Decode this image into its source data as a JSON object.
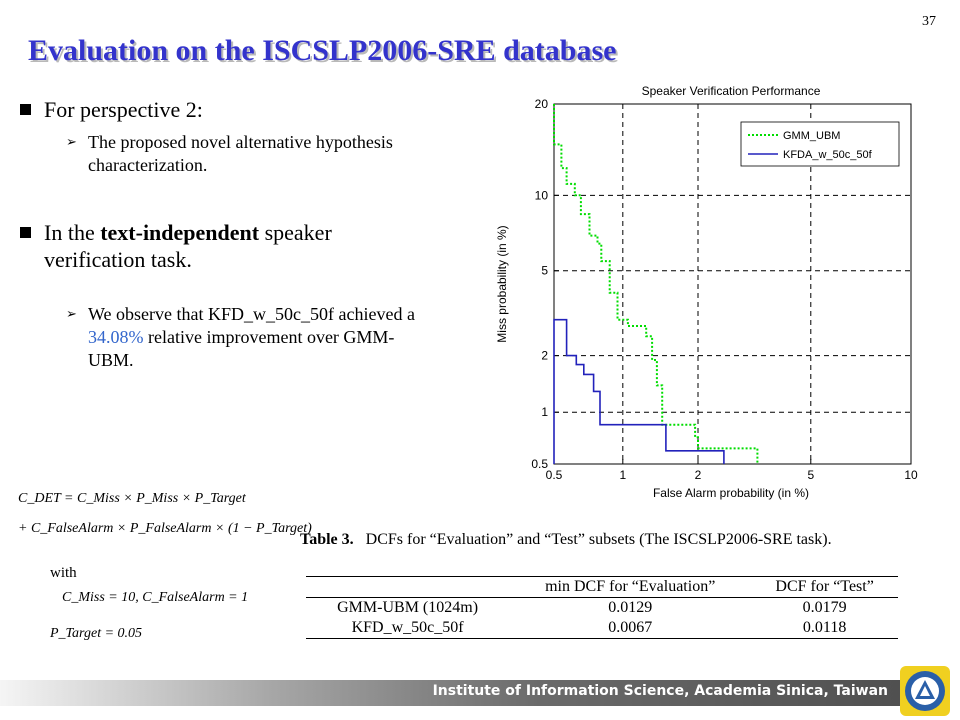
{
  "page_number": "37",
  "title": "Evaluation on the ISCSLP2006-SRE database",
  "bullets": [
    {
      "text": "For perspective 2:",
      "sub": [
        {
          "text": "The proposed novel alternative hypothesis characterization."
        }
      ]
    },
    {
      "text_pre": "In the ",
      "text_bold": "text-independent",
      "text_post": " speaker verification task.",
      "sub": [
        {
          "text_pre": "We observe that KFD_w_50c_50f achieved a ",
          "highlight": "34.08%",
          "text_post": " relative improvement over GMM-UBM."
        }
      ]
    }
  ],
  "formula": {
    "line1": "C_DET = C_Miss × P_Miss × P_Target",
    "line2": "+ C_FalseAlarm × P_FalseAlarm × (1 − P_Target)",
    "with": "with",
    "line3": "C_Miss = 10,   C_FalseAlarm = 1",
    "line4": "P_Target = 0.05"
  },
  "table": {
    "caption_bold": "Table 3.",
    "caption": "DCFs for “Evaluation” and “Test” subsets (The ISCSLP2006-SRE task).",
    "headers": [
      "",
      "min DCF for “Evaluation”",
      "DCF for “Test”"
    ],
    "rows": [
      [
        "GMM-UBM (1024m)",
        "0.0129",
        "0.0179"
      ],
      [
        "KFD_w_50c_50f",
        "0.0067",
        "0.0118"
      ]
    ]
  },
  "footer": "Institute of Information Science, Academia Sinica, Taiwan",
  "chart_data": {
    "type": "line",
    "title": "Speaker Verification Performance",
    "xlabel": "False Alarm probability (in %)",
    "ylabel": "Miss probability (in %)",
    "xscale": "probit",
    "yscale": "probit",
    "xlim": [
      0.5,
      10
    ],
    "ylim": [
      0.5,
      20
    ],
    "xticks": [
      0.5,
      1,
      2,
      5,
      10
    ],
    "yticks": [
      0.5,
      1,
      2,
      5,
      10,
      20
    ],
    "xtick_labels": [
      "0.5",
      "1",
      "2",
      "5",
      "10"
    ],
    "ytick_labels": [
      "0.5",
      "1",
      "2",
      "5",
      "10",
      "20"
    ],
    "grid": true,
    "legend_position": "top-right",
    "series": [
      {
        "name": "GMM_UBM",
        "color": "#00dd00",
        "style": "dotted",
        "points": [
          [
            0.5,
            20
          ],
          [
            0.5,
            15
          ],
          [
            0.54,
            15
          ],
          [
            0.54,
            12.5
          ],
          [
            0.57,
            12.5
          ],
          [
            0.57,
            11
          ],
          [
            0.62,
            11
          ],
          [
            0.62,
            10
          ],
          [
            0.66,
            10
          ],
          [
            0.66,
            8.5
          ],
          [
            0.72,
            8.5
          ],
          [
            0.72,
            7
          ],
          [
            0.78,
            7
          ],
          [
            0.78,
            6.5
          ],
          [
            0.81,
            6.5
          ],
          [
            0.81,
            5.5
          ],
          [
            0.88,
            5.5
          ],
          [
            0.88,
            4
          ],
          [
            0.95,
            4
          ],
          [
            0.95,
            3
          ],
          [
            1.05,
            3
          ],
          [
            1.05,
            2.8
          ],
          [
            1.25,
            2.8
          ],
          [
            1.25,
            2.5
          ],
          [
            1.32,
            2.5
          ],
          [
            1.32,
            1.9
          ],
          [
            1.38,
            1.9
          ],
          [
            1.38,
            1.4
          ],
          [
            1.45,
            1.4
          ],
          [
            1.45,
            0.85
          ],
          [
            1.95,
            0.85
          ],
          [
            1.95,
            0.72
          ],
          [
            2.0,
            0.72
          ],
          [
            2.0,
            0.62
          ],
          [
            3.3,
            0.62
          ],
          [
            3.3,
            0.5
          ]
        ]
      },
      {
        "name": "KFDA_w_50c_50f",
        "color": "#2222bb",
        "style": "solid",
        "points": [
          [
            0.5,
            0.5
          ],
          [
            0.5,
            3
          ],
          [
            0.57,
            3
          ],
          [
            0.57,
            2
          ],
          [
            0.63,
            2
          ],
          [
            0.63,
            1.8
          ],
          [
            0.68,
            1.8
          ],
          [
            0.68,
            1.6
          ],
          [
            0.75,
            1.6
          ],
          [
            0.75,
            1.3
          ],
          [
            0.8,
            1.3
          ],
          [
            0.8,
            0.85
          ],
          [
            1.5,
            0.85
          ],
          [
            1.5,
            0.6
          ],
          [
            2.5,
            0.6
          ],
          [
            2.5,
            0.5
          ]
        ]
      }
    ]
  }
}
